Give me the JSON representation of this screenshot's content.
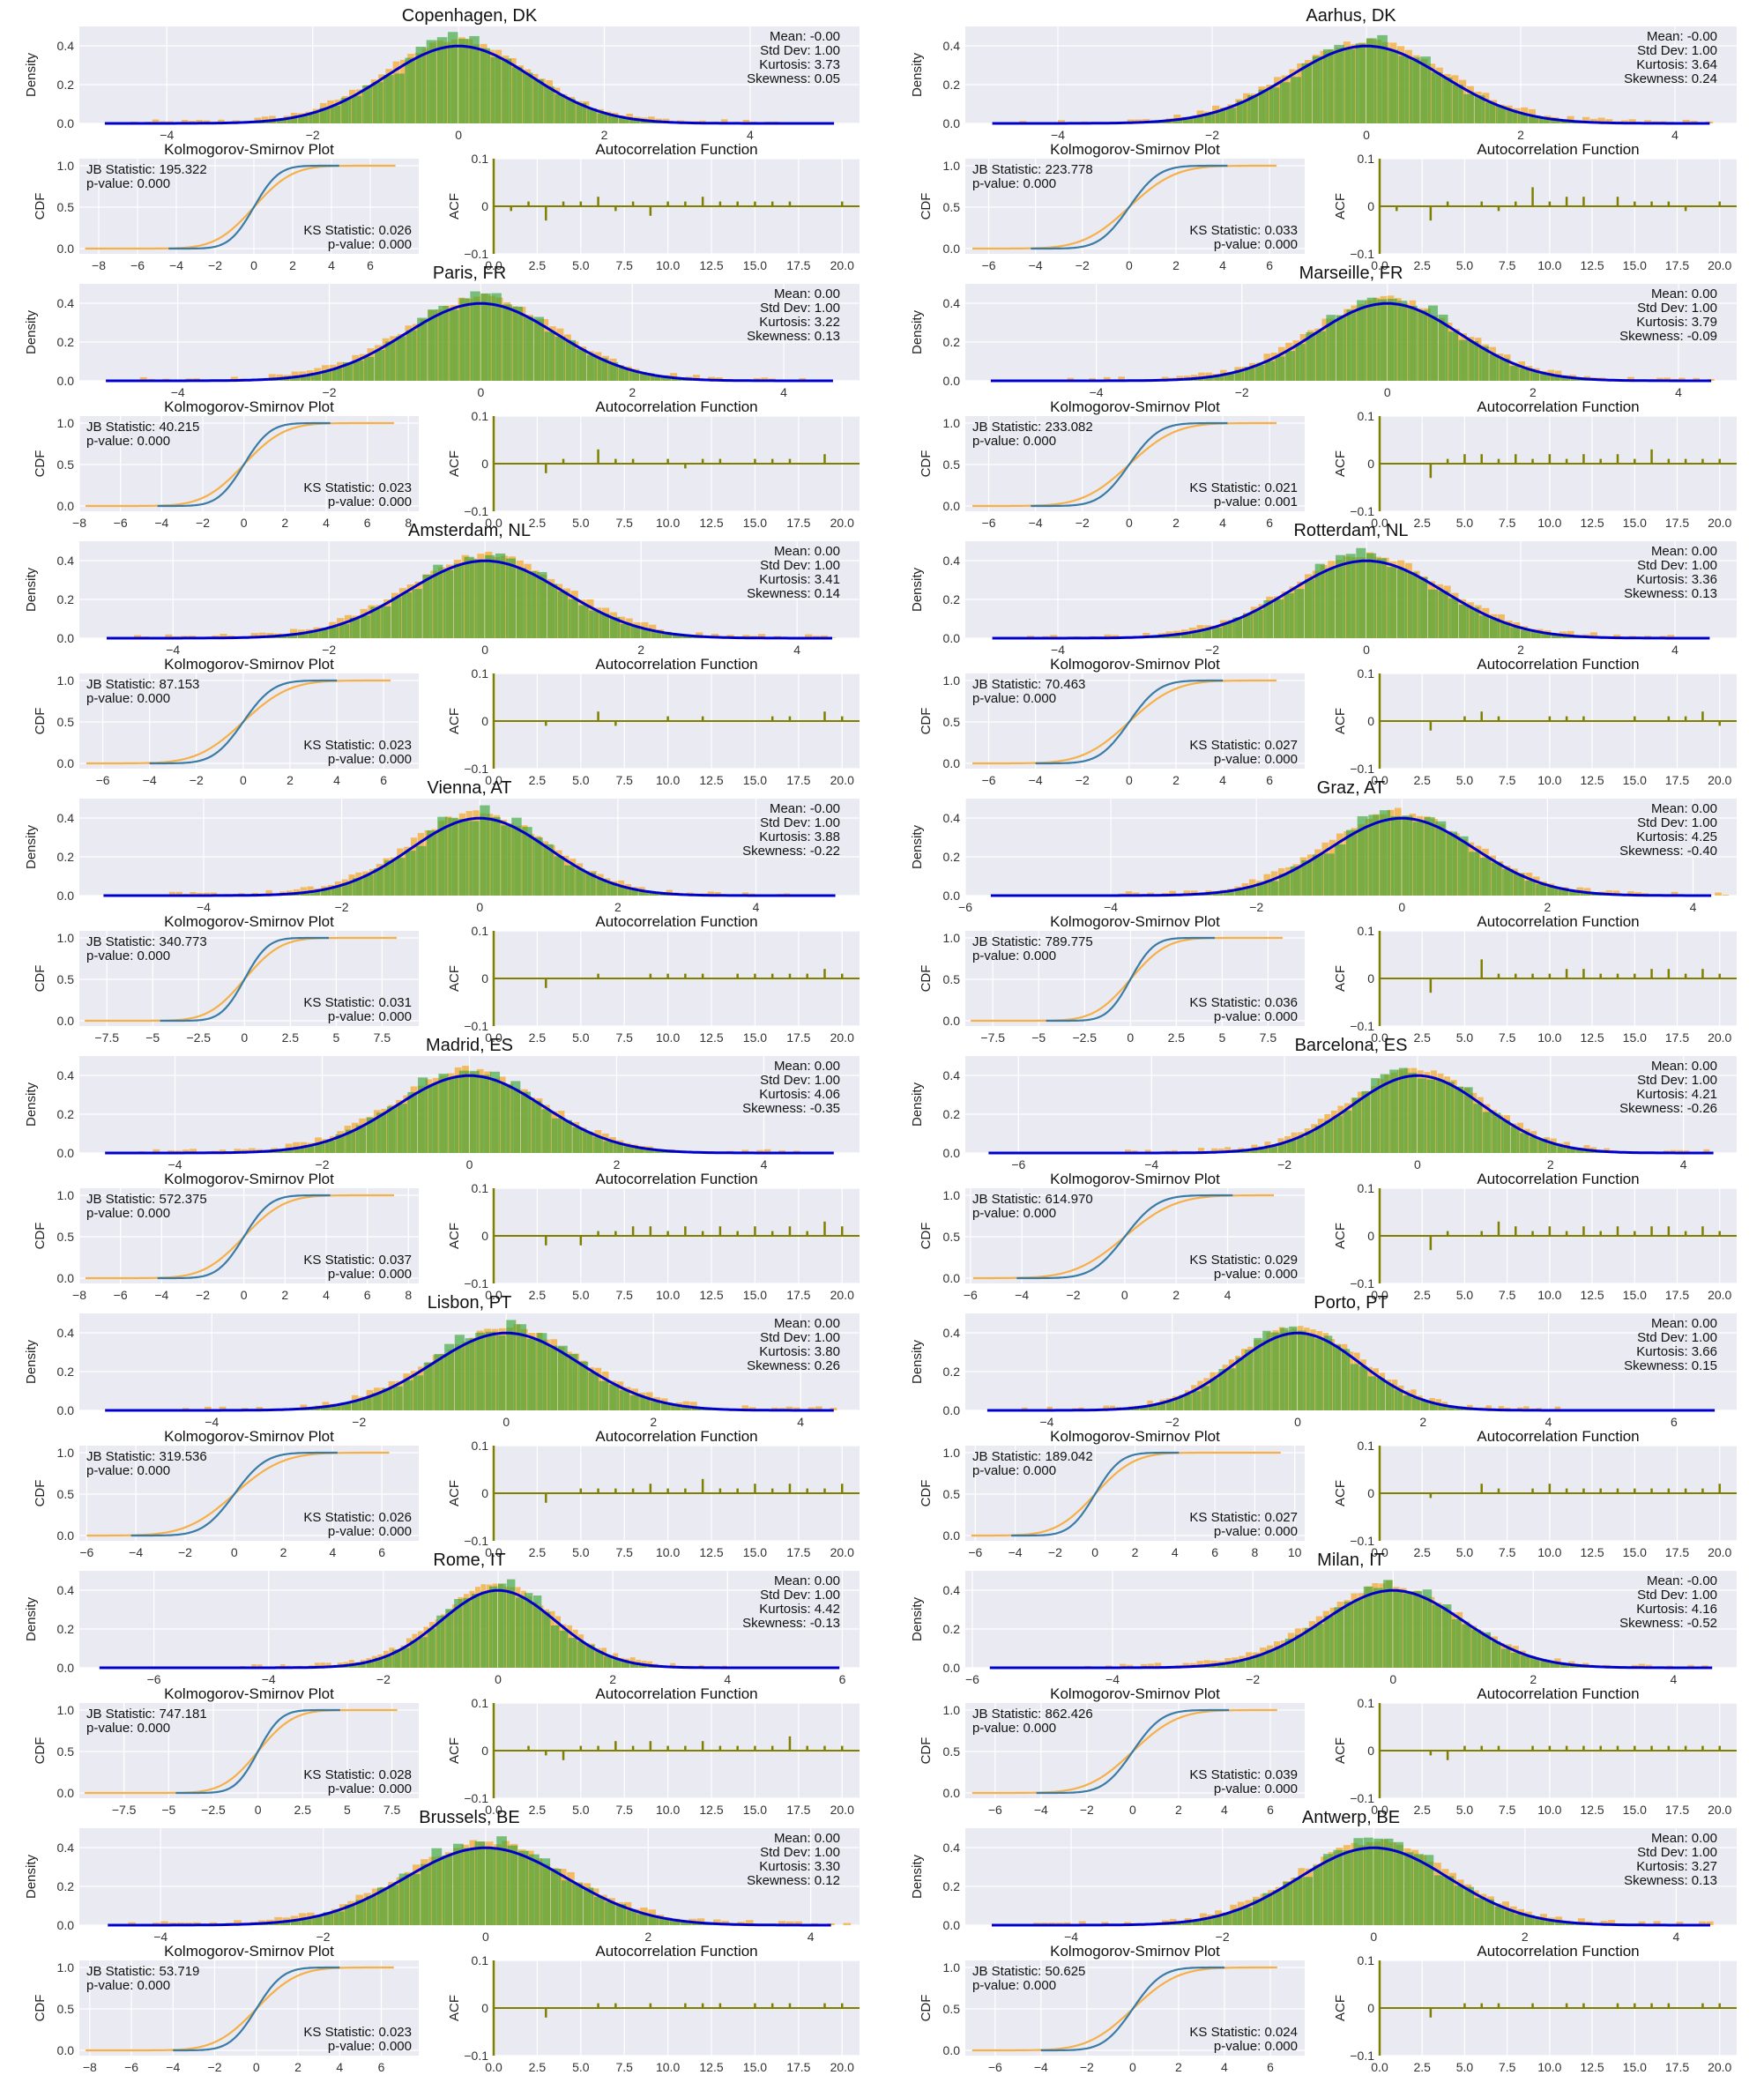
{
  "colors": {
    "empirical_hist": "#f5a623",
    "normal_hist": "#2ca02c",
    "normal_pdf": "#0000cc",
    "ks_empirical": "#3a7ca5",
    "ks_normal": "#f5b04a",
    "acf": "#808000",
    "panel_bg": "#eaeaf2"
  },
  "labels": {
    "density": "Density",
    "cdf": "CDF",
    "acf": "ACF",
    "ks_title": "Kolmogorov-Smirnov Plot",
    "acf_title": "Autocorrelation Function",
    "mean_prefix": "Mean: ",
    "std_prefix": "Std Dev: ",
    "kurt_prefix": "Kurtosis: ",
    "skew_prefix": "Skewness: ",
    "jb_prefix": "JB Statistic: ",
    "ks_prefix": "KS Statistic: ",
    "p_prefix": "p-value: "
  },
  "chart_data": [
    {
      "city": "Copenhagen, DK",
      "type": "bar",
      "mean": "-0.00",
      "std": "1.00",
      "kurtosis": "3.73",
      "skewness": "0.05",
      "jb": "195.322",
      "jb_p": "0.000",
      "ks": "0.026",
      "ks_p": "0.000",
      "hist_xlim": [
        -5.2,
        5.5
      ],
      "hist_xticks": [
        -4,
        -2,
        0,
        2,
        4
      ],
      "hist_ylim": [
        0,
        0.5
      ],
      "ks_xlim": [
        -9,
        8.5
      ],
      "ks_xticks": [
        -8,
        -6,
        -4,
        -2,
        0,
        2,
        4,
        6
      ],
      "emp_range": [
        -4.5,
        4.5
      ],
      "norm_range": [
        -4.4,
        4.4
      ],
      "acf": [
        0,
        -0.01,
        0.01,
        -0.03,
        0.01,
        0.01,
        0.02,
        -0.01,
        0.01,
        -0.02,
        0.01,
        0.01,
        0.02,
        0.01,
        0.01,
        0.01,
        0.01,
        0.01,
        0,
        0,
        0.01
      ]
    },
    {
      "city": "Aarhus, DK",
      "type": "bar",
      "mean": "-0.00",
      "std": "1.00",
      "kurtosis": "3.64",
      "skewness": "0.24",
      "jb": "223.778",
      "jb_p": "0.000",
      "ks": "0.033",
      "ks_p": "0.000",
      "hist_xlim": [
        -5.2,
        4.8
      ],
      "hist_xticks": [
        -4,
        -2,
        0,
        2,
        4
      ],
      "hist_ylim": [
        0,
        0.5
      ],
      "ks_xlim": [
        -7,
        7.5
      ],
      "ks_xticks": [
        -6,
        -4,
        -2,
        0,
        2,
        4,
        6
      ],
      "emp_range": [
        -4.5,
        4.5
      ],
      "norm_range": [
        -4.2,
        4.2
      ],
      "acf": [
        0,
        -0.01,
        0,
        -0.03,
        0.01,
        0,
        0.01,
        -0.01,
        0.01,
        0.04,
        0.01,
        0.02,
        0.02,
        0,
        0.02,
        0.01,
        0.01,
        0.01,
        -0.01,
        0,
        0.01
      ]
    },
    {
      "city": "Paris, FR",
      "type": "bar",
      "mean": "0.00",
      "std": "1.00",
      "kurtosis": "3.22",
      "skewness": "0.13",
      "jb": "40.215",
      "jb_p": "0.000",
      "ks": "0.023",
      "ks_p": "0.000",
      "hist_xlim": [
        -5.3,
        5
      ],
      "hist_xticks": [
        -4,
        -2,
        0,
        2,
        4
      ],
      "hist_ylim": [
        0,
        0.5
      ],
      "ks_xlim": [
        -8,
        8.5
      ],
      "ks_xticks": [
        -8,
        -6,
        -4,
        -2,
        0,
        2,
        4,
        6,
        8
      ],
      "emp_range": [
        -4.5,
        4.5
      ],
      "norm_range": [
        -4.2,
        4.2
      ],
      "acf": [
        0,
        0,
        0,
        -0.02,
        0.01,
        0,
        0.03,
        0.01,
        0.01,
        0,
        0.01,
        -0.01,
        0.01,
        0.01,
        0,
        0.01,
        0.01,
        0.01,
        0,
        0.02,
        0
      ]
    },
    {
      "city": "Marseille, FR",
      "type": "bar",
      "mean": "0.00",
      "std": "1.00",
      "kurtosis": "3.79",
      "skewness": "-0.09",
      "jb": "233.082",
      "jb_p": "0.000",
      "ks": "0.021",
      "ks_p": "0.001",
      "hist_xlim": [
        -5.8,
        4.8
      ],
      "hist_xticks": [
        -4,
        -2,
        0,
        2,
        4
      ],
      "hist_ylim": [
        0,
        0.5
      ],
      "ks_xlim": [
        -7,
        7.5
      ],
      "ks_xticks": [
        -6,
        -4,
        -2,
        0,
        2,
        4,
        6
      ],
      "emp_range": [
        -4.5,
        4.5
      ],
      "norm_range": [
        -4.2,
        4.2
      ],
      "acf": [
        0,
        0,
        0,
        -0.03,
        0.01,
        0.02,
        0.02,
        0.01,
        0.02,
        0.01,
        0.02,
        0.01,
        0.02,
        0.01,
        0.02,
        0.01,
        0.03,
        0.01,
        0.01,
        0.01,
        0.01
      ]
    },
    {
      "city": "Amsterdam, NL",
      "type": "bar",
      "mean": "0.00",
      "std": "1.00",
      "kurtosis": "3.41",
      "skewness": "0.14",
      "jb": "87.153",
      "jb_p": "0.000",
      "ks": "0.023",
      "ks_p": "0.000",
      "hist_xlim": [
        -5.2,
        4.8
      ],
      "hist_xticks": [
        -4,
        -2,
        0,
        2,
        4
      ],
      "hist_ylim": [
        0,
        0.5
      ],
      "ks_xlim": [
        -7,
        7.5
      ],
      "ks_xticks": [
        -6,
        -4,
        -2,
        0,
        2,
        4,
        6
      ],
      "emp_range": [
        -4.5,
        4.5
      ],
      "norm_range": [
        -4.0,
        4.0
      ],
      "acf": [
        0,
        0,
        0,
        -0.01,
        0,
        0,
        0.02,
        -0.01,
        0,
        0,
        0.01,
        0,
        0.01,
        0,
        0,
        0,
        0.01,
        0.01,
        0,
        0.02,
        0.01
      ]
    },
    {
      "city": "Rotterdam, NL",
      "type": "bar",
      "mean": "0.00",
      "std": "1.00",
      "kurtosis": "3.36",
      "skewness": "0.13",
      "jb": "70.463",
      "jb_p": "0.000",
      "ks": "0.027",
      "ks_p": "0.000",
      "hist_xlim": [
        -5.2,
        4.8
      ],
      "hist_xticks": [
        -4,
        -2,
        0,
        2,
        4
      ],
      "hist_ylim": [
        0,
        0.5
      ],
      "ks_xlim": [
        -7,
        7.5
      ],
      "ks_xticks": [
        -6,
        -4,
        -2,
        0,
        2,
        4,
        6
      ],
      "emp_range": [
        -4.5,
        4.5
      ],
      "norm_range": [
        -4.0,
        4.0
      ],
      "acf": [
        0,
        0,
        0,
        -0.02,
        0,
        0.01,
        0.02,
        0.01,
        0,
        0,
        0.01,
        0.01,
        0.01,
        0,
        0,
        0.01,
        0,
        0.01,
        0.01,
        0.02,
        -0.01
      ]
    },
    {
      "city": "Vienna, AT",
      "type": "bar",
      "mean": "-0.00",
      "std": "1.00",
      "kurtosis": "3.88",
      "skewness": "-0.22",
      "jb": "340.773",
      "jb_p": "0.000",
      "ks": "0.031",
      "ks_p": "0.000",
      "hist_xlim": [
        -5.8,
        5.5
      ],
      "hist_xticks": [
        -4,
        -2,
        0,
        2,
        4
      ],
      "hist_ylim": [
        0,
        0.5
      ],
      "ks_xlim": [
        -9,
        9.5
      ],
      "ks_xticks": [
        -7.5,
        -5,
        -2.5,
        0,
        2.5,
        5,
        7.5
      ],
      "emp_range": [
        -4.5,
        4.5
      ],
      "norm_range": [
        -4.6,
        4.6
      ],
      "acf": [
        0,
        0,
        0,
        -0.02,
        0,
        0,
        0.01,
        0,
        0,
        0.01,
        0.01,
        0.01,
        0.01,
        0,
        0.01,
        0.01,
        0.01,
        0.01,
        0.01,
        0.02,
        0.01
      ]
    },
    {
      "city": "Graz, AT",
      "type": "bar",
      "mean": "0.00",
      "std": "1.00",
      "kurtosis": "4.25",
      "skewness": "-0.40",
      "jb": "789.775",
      "jb_p": "0.000",
      "ks": "0.036",
      "ks_p": "0.000",
      "hist_xlim": [
        -6,
        4.6
      ],
      "hist_xticks": [
        -6,
        -4,
        -2,
        0,
        2,
        4
      ],
      "hist_ylim": [
        0,
        0.5
      ],
      "ks_xlim": [
        -9,
        9.5
      ],
      "ks_xticks": [
        -7.5,
        -5,
        -2.5,
        0,
        2.5,
        5,
        7.5
      ],
      "emp_range": [
        -4.5,
        4.5
      ],
      "norm_range": [
        -4.6,
        4.6
      ],
      "acf": [
        0,
        0,
        0,
        -0.03,
        0,
        0,
        0.04,
        0.01,
        0.01,
        0.01,
        0.01,
        0.02,
        0.02,
        0.01,
        0.01,
        0.01,
        0.02,
        0.02,
        0.01,
        0.02,
        0.01
      ]
    },
    {
      "city": "Madrid, ES",
      "type": "bar",
      "mean": "0.00",
      "std": "1.00",
      "kurtosis": "4.06",
      "skewness": "-0.35",
      "jb": "572.375",
      "jb_p": "0.000",
      "ks": "0.037",
      "ks_p": "0.000",
      "hist_xlim": [
        -5.3,
        5.3
      ],
      "hist_xticks": [
        -4,
        -2,
        0,
        2,
        4
      ],
      "hist_ylim": [
        0,
        0.5
      ],
      "ks_xlim": [
        -8,
        8.5
      ],
      "ks_xticks": [
        -8,
        -6,
        -4,
        -2,
        0,
        2,
        4,
        6,
        8
      ],
      "emp_range": [
        -4.5,
        4.5
      ],
      "norm_range": [
        -4.2,
        4.2
      ],
      "acf": [
        0,
        0,
        0,
        -0.02,
        0,
        -0.02,
        0.01,
        0.01,
        0.02,
        0.02,
        0.01,
        0.02,
        0.01,
        0.02,
        0.01,
        0.02,
        0.01,
        0.02,
        0.01,
        0.03,
        0.02
      ]
    },
    {
      "city": "Barcelona, ES",
      "type": "bar",
      "mean": "0.00",
      "std": "1.00",
      "kurtosis": "4.21",
      "skewness": "-0.26",
      "jb": "614.970",
      "jb_p": "0.000",
      "ks": "0.029",
      "ks_p": "0.000",
      "hist_xlim": [
        -6.8,
        4.8
      ],
      "hist_xticks": [
        -6,
        -4,
        -2,
        0,
        2,
        4
      ],
      "hist_ylim": [
        0,
        0.5
      ],
      "ks_xlim": [
        -6.2,
        7
      ],
      "ks_xticks": [
        -6,
        -4,
        -2,
        0,
        2,
        4
      ],
      "emp_range": [
        -4.5,
        4.5
      ],
      "norm_range": [
        -4.2,
        4.2
      ],
      "acf": [
        0,
        0,
        0,
        -0.03,
        0.01,
        0,
        0.01,
        0.03,
        0.02,
        0.01,
        0.02,
        0.01,
        0.02,
        0.01,
        0.02,
        0.01,
        0.02,
        0.02,
        0.01,
        0.02,
        0.01
      ]
    },
    {
      "city": "Lisbon, PT",
      "type": "bar",
      "mean": "0.00",
      "std": "1.00",
      "kurtosis": "3.80",
      "skewness": "0.26",
      "jb": "319.536",
      "jb_p": "0.000",
      "ks": "0.026",
      "ks_p": "0.000",
      "hist_xlim": [
        -5.8,
        4.8
      ],
      "hist_xticks": [
        -4,
        -2,
        0,
        2,
        4
      ],
      "hist_ylim": [
        0,
        0.5
      ],
      "ks_xlim": [
        -6.3,
        7.5
      ],
      "ks_xticks": [
        -6,
        -4,
        -2,
        0,
        2,
        4,
        6
      ],
      "emp_range": [
        -4.5,
        4.5
      ],
      "norm_range": [
        -4.2,
        4.2
      ],
      "acf": [
        0,
        0,
        0,
        -0.02,
        0,
        0.01,
        0.01,
        0.01,
        0.01,
        0.02,
        0.01,
        0.01,
        0.03,
        0.01,
        0.01,
        0.02,
        0.01,
        0.02,
        0.01,
        0.01,
        0.02
      ]
    },
    {
      "city": "Porto, PT",
      "type": "bar",
      "mean": "0.00",
      "std": "1.00",
      "kurtosis": "3.66",
      "skewness": "0.15",
      "jb": "189.042",
      "jb_p": "0.000",
      "ks": "0.027",
      "ks_p": "0.000",
      "hist_xlim": [
        -5.3,
        7
      ],
      "hist_xticks": [
        -4,
        -2,
        0,
        2,
        4,
        6
      ],
      "hist_ylim": [
        0,
        0.5
      ],
      "ks_xlim": [
        -6.5,
        10.5
      ],
      "ks_xticks": [
        -6,
        -4,
        -2,
        0,
        2,
        4,
        6,
        8,
        10
      ],
      "emp_range": [
        -4.5,
        4.5
      ],
      "norm_range": [
        -4.2,
        4.2
      ],
      "acf": [
        0,
        0,
        0,
        -0.01,
        0,
        0,
        0.02,
        0.01,
        0,
        0.01,
        0.02,
        0.01,
        0.01,
        0.01,
        0.01,
        0.01,
        0.01,
        0.01,
        0.01,
        0.01,
        0.02
      ]
    },
    {
      "city": "Rome, IT",
      "type": "bar",
      "mean": "0.00",
      "std": "1.00",
      "kurtosis": "4.42",
      "skewness": "-0.13",
      "jb": "747.181",
      "jb_p": "0.000",
      "ks": "0.028",
      "ks_p": "0.000",
      "hist_xlim": [
        -7.3,
        6.3
      ],
      "hist_xticks": [
        -6,
        -4,
        -2,
        0,
        2,
        4,
        6
      ],
      "hist_ylim": [
        0,
        0.5
      ],
      "ks_xlim": [
        -10,
        9
      ],
      "ks_xticks": [
        -7.5,
        -5,
        -2.5,
        0,
        2.5,
        5,
        7.5
      ],
      "emp_range": [
        -4.5,
        4.5
      ],
      "norm_range": [
        -4.6,
        4.6
      ],
      "acf": [
        0,
        0,
        0.01,
        -0.01,
        -0.02,
        0.01,
        0.01,
        0.02,
        0.01,
        0.02,
        0.01,
        0.01,
        0.02,
        0.01,
        0.01,
        0.01,
        0.01,
        0.03,
        0.01,
        0.01,
        0.01
      ]
    },
    {
      "city": "Milan, IT",
      "type": "bar",
      "mean": "-0.00",
      "std": "1.00",
      "kurtosis": "4.16",
      "skewness": "-0.52",
      "jb": "862.426",
      "jb_p": "0.000",
      "ks": "0.039",
      "ks_p": "0.000",
      "hist_xlim": [
        -6.1,
        4.9
      ],
      "hist_xticks": [
        -6,
        -4,
        -2,
        0,
        2,
        4
      ],
      "hist_ylim": [
        0,
        0.5
      ],
      "ks_xlim": [
        -7.3,
        7.5
      ],
      "ks_xticks": [
        -6,
        -4,
        -2,
        0,
        2,
        4,
        6
      ],
      "emp_range": [
        -4.5,
        4.5
      ],
      "norm_range": [
        -4.2,
        4.2
      ],
      "acf": [
        0,
        0,
        0,
        -0.01,
        -0.02,
        0.01,
        0.01,
        0.01,
        0,
        0.01,
        0.01,
        0.01,
        0.01,
        0.01,
        0.01,
        0.01,
        0.01,
        0.01,
        0.01,
        0.01,
        0.01
      ]
    },
    {
      "city": "Brussels, BE",
      "type": "bar",
      "mean": "0.00",
      "std": "1.00",
      "kurtosis": "3.30",
      "skewness": "0.12",
      "jb": "53.719",
      "jb_p": "0.000",
      "ks": "0.023",
      "ks_p": "0.000",
      "hist_xlim": [
        -5,
        4.6
      ],
      "hist_xticks": [
        -4,
        -2,
        0,
        2,
        4
      ],
      "hist_ylim": [
        0,
        0.5
      ],
      "ks_xlim": [
        -8.5,
        7.8
      ],
      "ks_xticks": [
        -8,
        -6,
        -4,
        -2,
        0,
        2,
        4,
        6
      ],
      "emp_range": [
        -4.5,
        4.5
      ],
      "norm_range": [
        -4.0,
        4.0
      ],
      "acf": [
        0,
        0,
        0,
        -0.02,
        0,
        0,
        0.01,
        0.01,
        0,
        0.01,
        0,
        0.01,
        0.01,
        0.01,
        0,
        0.01,
        0.01,
        0.01,
        0,
        0.01,
        0.01
      ]
    },
    {
      "city": "Antwerp, BE",
      "type": "bar",
      "mean": "0.00",
      "std": "1.00",
      "kurtosis": "3.27",
      "skewness": "0.13",
      "jb": "50.625",
      "jb_p": "0.000",
      "ks": "0.024",
      "ks_p": "0.000",
      "hist_xlim": [
        -5.4,
        4.8
      ],
      "hist_xticks": [
        -4,
        -2,
        0,
        2,
        4
      ],
      "hist_ylim": [
        0,
        0.5
      ],
      "ks_xlim": [
        -7.3,
        7.5
      ],
      "ks_xticks": [
        -6,
        -4,
        -2,
        0,
        2,
        4,
        6
      ],
      "emp_range": [
        -4.5,
        4.5
      ],
      "norm_range": [
        -4.0,
        4.0
      ],
      "acf": [
        0,
        0,
        0,
        -0.02,
        0,
        0.01,
        0.01,
        0.01,
        0,
        0.01,
        0,
        0.01,
        0.01,
        0,
        0.01,
        0.01,
        0.01,
        0.01,
        0,
        0.01,
        0.01
      ]
    }
  ]
}
